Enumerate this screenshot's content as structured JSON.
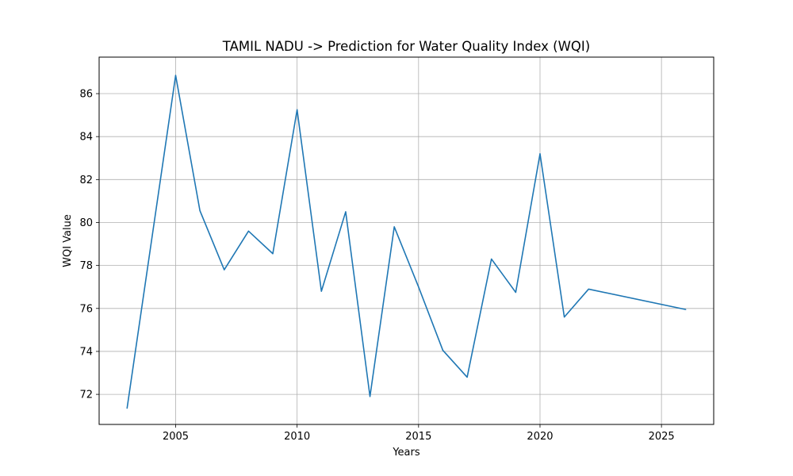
{
  "chart_data": {
    "type": "line",
    "title": "TAMIL NADU -> Prediction for Water Quality Index (WQI)",
    "xlabel": "Years",
    "ylabel": "WQI Value",
    "xlim": [
      2001.85,
      2027.15
    ],
    "ylim": [
      70.6,
      87.7
    ],
    "xticks": [
      2005,
      2010,
      2015,
      2020,
      2025
    ],
    "yticks": [
      72,
      74,
      76,
      78,
      80,
      82,
      84,
      86
    ],
    "grid": true,
    "color": "#1f77b4",
    "series": [
      {
        "x": [
          2003,
          2005,
          2006,
          2007,
          2008,
          2009,
          2010,
          2011,
          2012,
          2013,
          2014,
          2015,
          2016,
          2017,
          2018,
          2019,
          2020,
          2021,
          2022,
          2026
        ],
        "values": [
          71.35,
          86.85,
          80.55,
          77.8,
          79.6,
          78.55,
          85.25,
          76.8,
          80.5,
          71.9,
          79.8,
          77.0,
          74.05,
          72.8,
          78.3,
          76.75,
          83.2,
          75.6,
          76.9,
          75.95
        ]
      }
    ]
  }
}
